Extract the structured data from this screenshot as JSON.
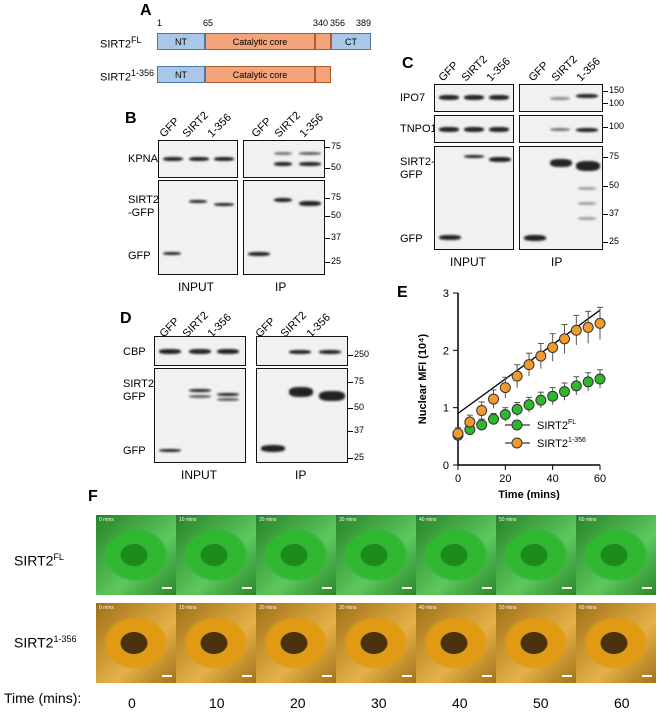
{
  "panelA": {
    "letter": "A",
    "fl_label_base": "SIRT2",
    "fl_label_sup": "FL",
    "tr_label_base": "SIRT2",
    "tr_label_sup": "1-356",
    "positions": [
      "1",
      "65",
      "340",
      "356",
      "389"
    ],
    "nt": "NT",
    "core": "Catalytic core",
    "ct": "CT"
  },
  "panelB": {
    "letter": "B",
    "lanes": [
      "GFP",
      "SIRT2",
      "1-356",
      "GFP",
      "SIRT2",
      "1-356"
    ],
    "kpna2": "KPNA2",
    "sirt2gfp": "SIRT2\n-GFP",
    "gfp": "GFP",
    "input": "INPUT",
    "ip": "IP",
    "mw_top": [
      "75",
      "50"
    ],
    "mw_bottom": [
      "75",
      "50",
      "37",
      "25"
    ]
  },
  "panelC": {
    "letter": "C",
    "lanes": [
      "GFP",
      "SIRT2",
      "1-356",
      "GFP",
      "SIRT2",
      "1-356"
    ],
    "ipo7": "IPO7",
    "tnpo1": "TNPO1",
    "sirt2gfp": "SIRT2-\nGFP",
    "gfp": "GFP",
    "input": "INPUT",
    "ip": "IP",
    "mw_ipo7": [
      "150",
      "100"
    ],
    "mw_tnpo1": [
      "100"
    ],
    "mw_bottom": [
      "75",
      "50",
      "37",
      "25"
    ]
  },
  "panelD": {
    "letter": "D",
    "lanes": [
      "GFP",
      "SIRT2",
      "1-356",
      "GFP",
      "SIRT2",
      "1-356"
    ],
    "cbp": "CBP",
    "sirt2gfp": "SIRT2-\nGFP",
    "gfp": "GFP",
    "input": "INPUT",
    "ip": "IP",
    "mw_top": [
      "250"
    ],
    "mw_bottom": [
      "75",
      "50",
      "37",
      "25"
    ]
  },
  "panelE": {
    "letter": "E"
  },
  "chart_data": {
    "type": "scatter",
    "title": "",
    "xlabel": "Time (mins)",
    "ylabel": "Nuclear MFI (10⁴)",
    "xlim": [
      0,
      60
    ],
    "ylim": [
      0,
      3
    ],
    "xticks": [
      "0",
      "20",
      "40",
      "60"
    ],
    "yticks": [
      "0",
      "1",
      "2",
      "3"
    ],
    "legend_placement": "bottom-right",
    "series": [
      {
        "name": "SIRT2FL",
        "legend_base": "SIRT2",
        "legend_sup": "FL",
        "color": "#2eb82e",
        "x": [
          0,
          5,
          10,
          15,
          20,
          25,
          30,
          35,
          40,
          45,
          50,
          55,
          60
        ],
        "y": [
          0.52,
          0.62,
          0.7,
          0.8,
          0.88,
          0.97,
          1.05,
          1.13,
          1.2,
          1.28,
          1.38,
          1.45,
          1.5
        ],
        "err": [
          0.08,
          0.08,
          0.1,
          0.1,
          0.12,
          0.12,
          0.13,
          0.14,
          0.15,
          0.15,
          0.16,
          0.16,
          0.16
        ]
      },
      {
        "name": "SIRT21-356",
        "legend_base": "SIRT2",
        "legend_sup": "1-356",
        "color": "#f39a2d",
        "x": [
          0,
          5,
          10,
          15,
          20,
          25,
          30,
          35,
          40,
          45,
          50,
          55,
          60
        ],
        "y": [
          0.55,
          0.75,
          0.95,
          1.15,
          1.35,
          1.55,
          1.75,
          1.9,
          2.05,
          2.2,
          2.35,
          2.4,
          2.47
        ],
        "err": [
          0.1,
          0.12,
          0.15,
          0.16,
          0.18,
          0.2,
          0.2,
          0.22,
          0.24,
          0.25,
          0.26,
          0.28,
          0.28
        ]
      }
    ],
    "trendline": {
      "x": [
        0,
        60
      ],
      "y": [
        0.9,
        2.7
      ]
    }
  },
  "panelF": {
    "letter": "F",
    "row1_base": "SIRT2",
    "row1_sup": "FL",
    "row2_base": "SIRT2",
    "row2_sup": "1-356",
    "time_labels": [
      "0 mins",
      "10 mins",
      "20 mins",
      "30 mins",
      "40 mins",
      "50 mins",
      "60 mins"
    ],
    "axis_label": "Time (mins):",
    "times": [
      "0",
      "10",
      "20",
      "30",
      "40",
      "50",
      "60"
    ],
    "green": "#2fb82f",
    "orange": "#e09a14"
  }
}
